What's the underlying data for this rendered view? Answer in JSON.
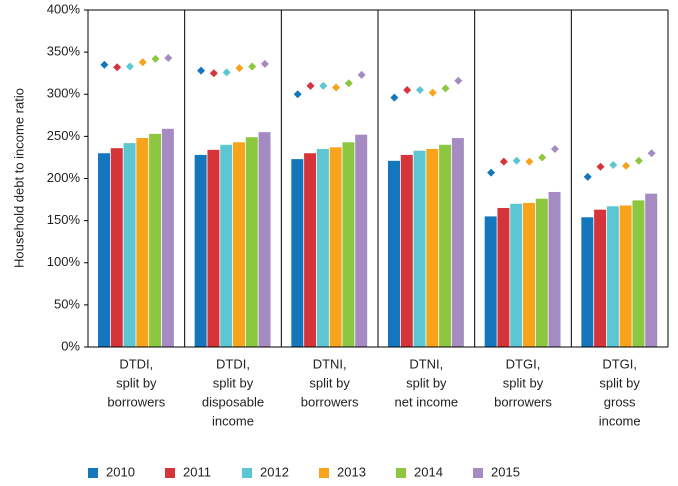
{
  "chart_data": {
    "type": "bar",
    "y_axis_label": "Household debt to income ratio",
    "categories": [
      [
        "DTDI,",
        "split by",
        "borrowers"
      ],
      [
        "DTDI,",
        "split by",
        "disposable",
        "income"
      ],
      [
        "DTNI,",
        "split by",
        "borrowers"
      ],
      [
        "DTNI,",
        "split by",
        "net income"
      ],
      [
        "DTGI,",
        "split by",
        "borrowers"
      ],
      [
        "DTGI,",
        "split by",
        "gross",
        "income"
      ]
    ],
    "series": [
      {
        "name": "2010",
        "color": "#1476bd",
        "values": [
          230,
          228,
          223,
          221,
          155,
          154
        ],
        "marker_values": [
          335,
          328,
          300,
          296,
          207,
          202
        ]
      },
      {
        "name": "2011",
        "color": "#d6343b",
        "values": [
          236,
          234,
          230,
          228,
          165,
          163
        ],
        "marker_values": [
          332,
          325,
          310,
          305,
          220,
          214
        ]
      },
      {
        "name": "2012",
        "color": "#5cc6d2",
        "values": [
          242,
          240,
          235,
          233,
          170,
          167
        ],
        "marker_values": [
          333,
          326,
          310,
          305,
          221,
          216
        ]
      },
      {
        "name": "2013",
        "color": "#f7a31c",
        "values": [
          248,
          243,
          237,
          235,
          171,
          168
        ],
        "marker_values": [
          338,
          331,
          308,
          302,
          220,
          215
        ]
      },
      {
        "name": "2014",
        "color": "#8dc63f",
        "values": [
          253,
          249,
          243,
          240,
          176,
          174
        ],
        "marker_values": [
          342,
          333,
          313,
          307,
          225,
          221
        ]
      },
      {
        "name": "2015",
        "color": "#a58bc2",
        "values": [
          259,
          255,
          252,
          248,
          184,
          182
        ],
        "marker_values": [
          343,
          336,
          323,
          316,
          235,
          230
        ]
      }
    ],
    "ylim": [
      0,
      400
    ],
    "yticks": [
      {
        "value": 0,
        "label": "0%"
      },
      {
        "value": 50,
        "label": "50%"
      },
      {
        "value": 100,
        "label": "100%"
      },
      {
        "value": 150,
        "label": "150%"
      },
      {
        "value": 200,
        "label": "200%"
      },
      {
        "value": 250,
        "label": "250%"
      },
      {
        "value": 300,
        "label": "300%"
      },
      {
        "value": 350,
        "label": "350%"
      },
      {
        "value": 400,
        "label": "400%"
      }
    ]
  }
}
